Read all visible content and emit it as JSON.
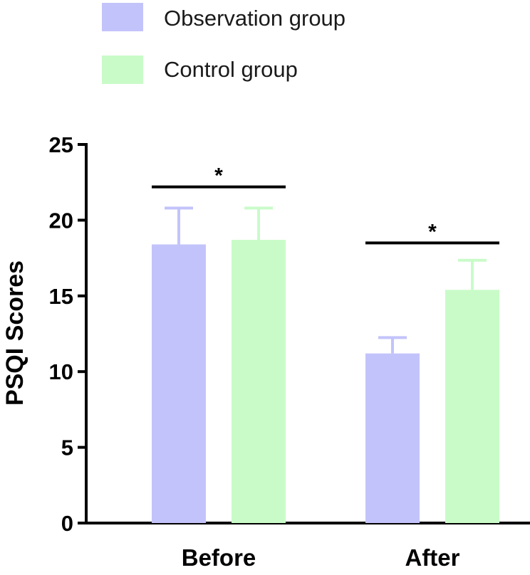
{
  "chart_data": {
    "type": "bar",
    "title": "",
    "xlabel": "",
    "ylabel": "PSQI Scores",
    "ylim": [
      0,
      25
    ],
    "yticks": [
      0,
      5,
      10,
      15,
      20,
      25
    ],
    "categories": [
      "Before",
      "After"
    ],
    "series": [
      {
        "name": "Observation group",
        "color": "#c3c3fb",
        "values": [
          18.4,
          11.2
        ],
        "errors": [
          2.4,
          1.05
        ]
      },
      {
        "name": "Control group",
        "color": "#c9fbc9",
        "values": [
          18.7,
          15.4
        ],
        "errors": [
          2.1,
          1.95
        ]
      }
    ],
    "significance": [
      {
        "category": "Before",
        "label": "*",
        "y": 22.2
      },
      {
        "category": "After",
        "label": "*",
        "y": 18.5
      }
    ],
    "legend_position": "top-left"
  }
}
